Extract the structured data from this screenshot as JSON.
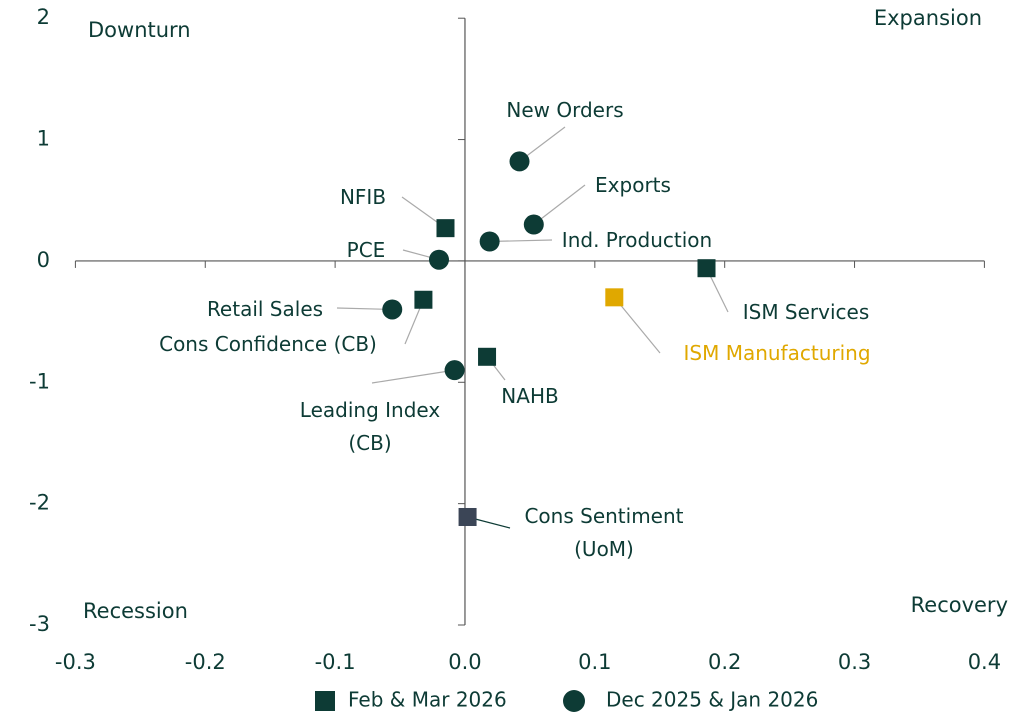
{
  "chart_data": {
    "type": "scatter",
    "quadrant_labels": {
      "top_left": "Downturn",
      "top_right": "Expansion",
      "bottom_left": "Recession",
      "bottom_right": "Recovery"
    },
    "xlim": [
      -0.3,
      0.4
    ],
    "ylim": [
      -3,
      2
    ],
    "xticks": [
      -0.3,
      -0.2,
      -0.1,
      {
        "value": 0,
        "label": "0.0"
      },
      0.1,
      0.2,
      0.3,
      0.4
    ],
    "yticks": [
      2,
      1,
      0,
      -1,
      -2,
      -3
    ],
    "series": [
      {
        "name": "Feb & Mar 2026",
        "marker": "square",
        "labels": [
          "NFIB",
          "Cons Confidence (CB)",
          "NAHB",
          "ISM Services",
          "ISM Manufacturing",
          "Cons Sentiment (UoM)"
        ],
        "x": [
          -0.015,
          -0.032,
          0.017,
          0.186,
          0.115,
          0.002
        ],
        "values": [
          0.27,
          -0.32,
          -0.79,
          -0.06,
          -0.3,
          -2.11
        ],
        "colors": [
          "#0d3b35",
          "#0d3b35",
          "#0d3b35",
          "#0d3b35",
          "#e0a800",
          "#3b4556"
        ],
        "label_colors": [
          "#0d3b35",
          "#0d3b35",
          "#0d3b35",
          "#0d3b35",
          "#e0a800",
          "#0d3b35"
        ]
      },
      {
        "name": "Dec 2025 & Jan 2026",
        "marker": "circle",
        "labels": [
          "New Orders",
          "Exports",
          "Ind. Production",
          "PCE",
          "Retail Sales",
          "Leading Index (CB)"
        ],
        "x": [
          0.042,
          0.053,
          0.019,
          -0.02,
          -0.056,
          -0.008
        ],
        "values": [
          0.82,
          0.3,
          0.16,
          0.01,
          -0.4,
          -0.9
        ],
        "colors": [
          "#0d3b35",
          "#0d3b35",
          "#0d3b35",
          "#0d3b35",
          "#0d3b35",
          "#0d3b35"
        ],
        "label_colors": [
          "#0d3b35",
          "#0d3b35",
          "#0d3b35",
          "#0d3b35",
          "#0d3b35",
          "#0d3b35"
        ]
      }
    ]
  }
}
